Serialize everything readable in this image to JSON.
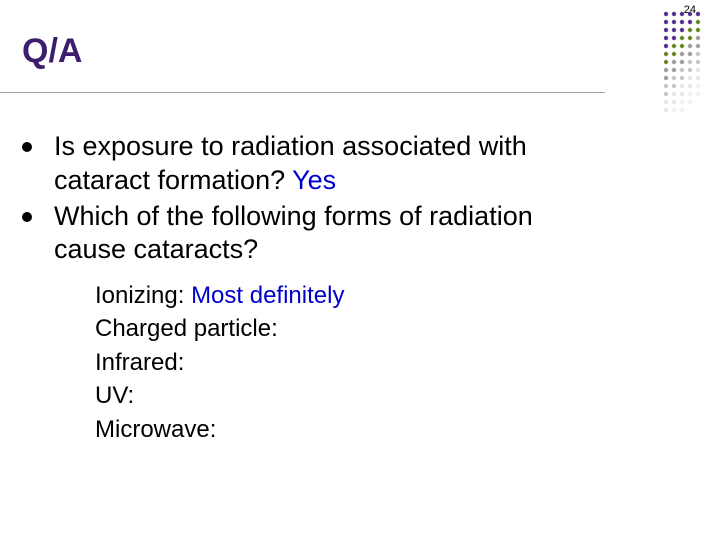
{
  "page_number": "24",
  "title": "Q/A",
  "title_color": "#3d1e6d",
  "answer_color": "#0000cc",
  "main_bullets": [
    {
      "text": "Is exposure to radiation associated with cataract formation? ",
      "answer": "Yes"
    },
    {
      "text": "Which of the following forms of radiation cause cataracts?",
      "answer": ""
    }
  ],
  "sub_items": [
    {
      "label": "Ionizing: ",
      "answer": "Most definitely"
    },
    {
      "label": "Charged particle:",
      "answer": ""
    },
    {
      "label": "Infrared:",
      "answer": ""
    },
    {
      "label": "UV:",
      "answer": ""
    },
    {
      "label": "Microwave:",
      "answer": ""
    }
  ],
  "dots_matrix": {
    "cols": 5,
    "rows": 13,
    "spacing": 8,
    "radius": 2.2,
    "colors": [
      "#5b2e91",
      "#5b2e91",
      "#5b2e91",
      "#5b2e91",
      "#5b2e91",
      "#5b2e91",
      "#5b2e91",
      "#5b2e91",
      "#5b2e91",
      "#6b8e23",
      "#5b2e91",
      "#5b2e91",
      "#5b2e91",
      "#6b8e23",
      "#6b8e23",
      "#5b2e91",
      "#5b2e91",
      "#6b8e23",
      "#6b8e23",
      "#a0a0a0",
      "#5b2e91",
      "#6b8e23",
      "#6b8e23",
      "#a0a0a0",
      "#a0a0a0",
      "#6b8e23",
      "#6b8e23",
      "#a0a0a0",
      "#a0a0a0",
      "#c8c8c8",
      "#6b8e23",
      "#a0a0a0",
      "#a0a0a0",
      "#c8c8c8",
      "#c8c8c8",
      "#a0a0a0",
      "#a0a0a0",
      "#c8c8c8",
      "#c8c8c8",
      "#e6e6e6",
      "#a0a0a0",
      "#c8c8c8",
      "#c8c8c8",
      "#e6e6e6",
      "#e6e6e6",
      "#c8c8c8",
      "#c8c8c8",
      "#e6e6e6",
      "#e6e6e6",
      "#f2f2f2",
      "#c8c8c8",
      "#e6e6e6",
      "#e6e6e6",
      "#f2f2f2",
      "#f2f2f2",
      "#e6e6e6",
      "#e6e6e6",
      "#f2f2f2",
      "#f2f2f2",
      "",
      "#e6e6e6",
      "#f2f2f2",
      "#f2f2f2",
      "",
      ""
    ]
  }
}
